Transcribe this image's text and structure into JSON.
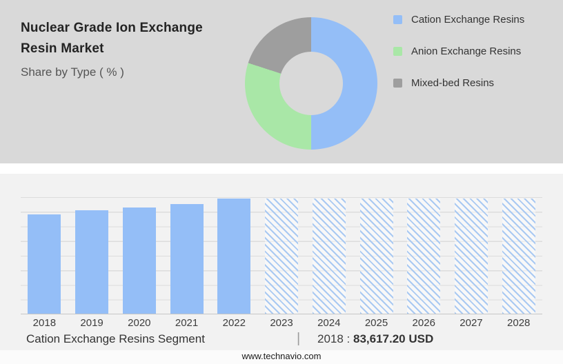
{
  "colors": {
    "top_background": "#d9d9d9",
    "bottom_background": "#f2f2f2",
    "cation_blue": "#94BEF7",
    "anion_green": "#A9E7A7",
    "mixed_gray": "#9E9E9E",
    "hatch_stripe": "#a9c9f2",
    "gridline": "#dcdcdc"
  },
  "header": {
    "title_line1": "Nuclear Grade Ion Exchange",
    "title_line2": "Resin Market",
    "subtitle": "Share by Type ( % )"
  },
  "legend": {
    "items": [
      {
        "label": "Cation Exchange Resins",
        "color": "#94BEF7"
      },
      {
        "label": "Anion Exchange Resins",
        "color": "#A9E7A7"
      },
      {
        "label": "Mixed-bed Resins",
        "color": "#9E9E9E"
      }
    ]
  },
  "chart_data": [
    {
      "type": "pie",
      "donut": true,
      "title": "Share by Type ( % )",
      "slices": [
        {
          "label": "Cation Exchange Resins",
          "value_pct": 50,
          "color": "#94BEF7"
        },
        {
          "label": "Anion Exchange Resins",
          "value_pct": 30,
          "color": "#A9E7A7"
        },
        {
          "label": "Mixed-bed Resins",
          "value_pct": 20,
          "color": "#9E9E9E"
        }
      ],
      "legend_position": "right",
      "note": "slice sizes estimated from arc angles; no numeric labels shown"
    },
    {
      "type": "bar",
      "categories": [
        "2018",
        "2019",
        "2020",
        "2021",
        "2022",
        "2023",
        "2024",
        "2025",
        "2026",
        "2027",
        "2028"
      ],
      "series": [
        {
          "name": "Market size (relative bar height, % of plot)",
          "values": [
            85,
            88.5,
            91,
            94,
            99,
            99,
            99,
            99,
            99,
            99,
            99
          ]
        }
      ],
      "solid_categories": [
        "2018",
        "2019",
        "2020",
        "2021",
        "2022"
      ],
      "hatched_categories": [
        "2023",
        "2024",
        "2025",
        "2026",
        "2027",
        "2028"
      ],
      "bar_color": "#94BEF7",
      "grid": "horizontal",
      "annotation": "2018 : 83,617.20 USD"
    }
  ],
  "caption": {
    "segment": "Cation Exchange Resins Segment",
    "separator": "|",
    "year_label": "2018 :",
    "value": "83,617.20 USD"
  },
  "footer": {
    "website": "www.technavio.com"
  }
}
